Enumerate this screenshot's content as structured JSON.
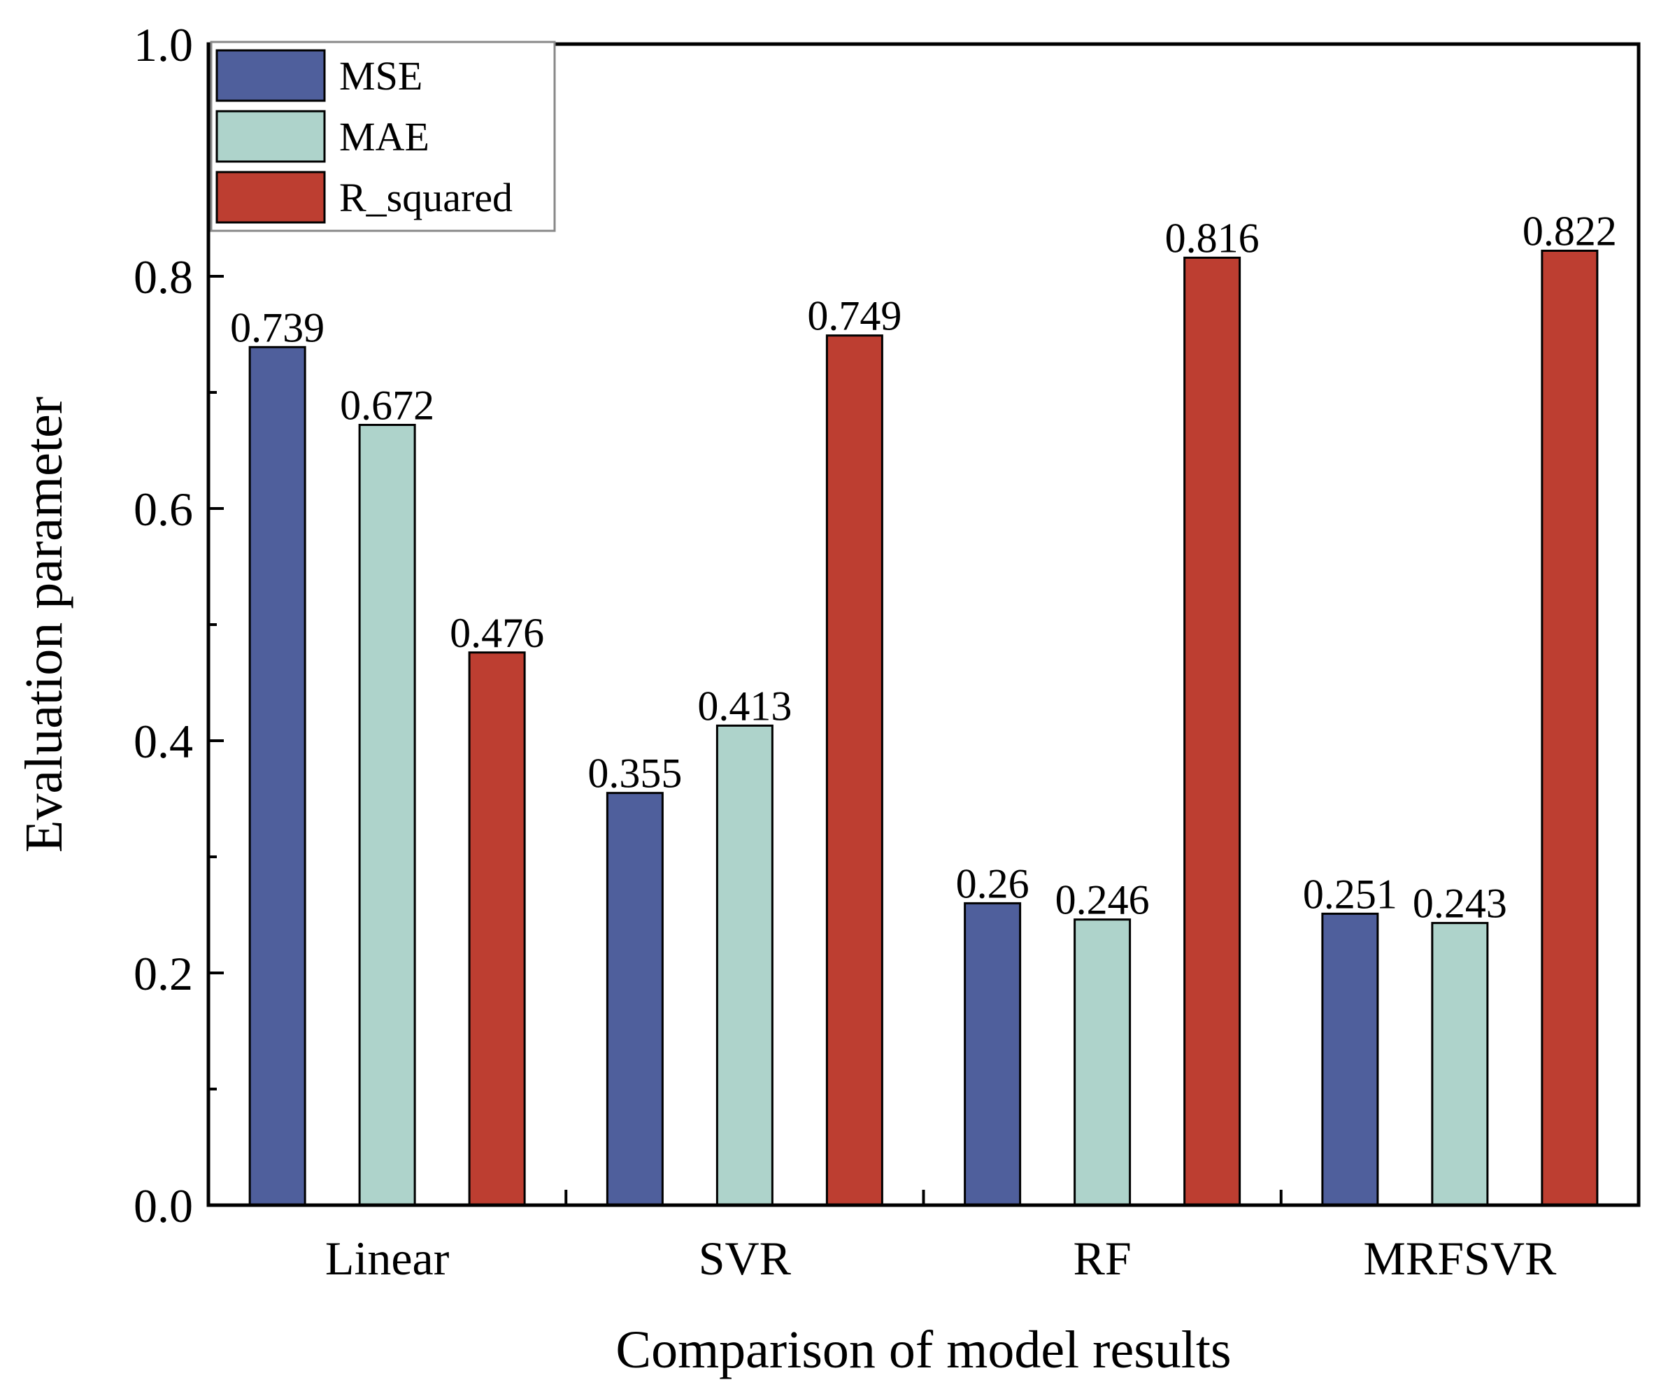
{
  "chart_data": {
    "type": "bar",
    "title": "",
    "xlabel": "Comparison of model results",
    "ylabel": "Evaluation parameter",
    "categories": [
      "Linear",
      "SVR",
      "RF",
      "MRFSVR"
    ],
    "series": [
      {
        "name": "MSE",
        "color": "#4f5f9c",
        "values": [
          0.739,
          0.355,
          0.26,
          0.251
        ],
        "labels": [
          "0.739",
          "0.355",
          "0.26",
          "0.251"
        ]
      },
      {
        "name": "MAE",
        "color": "#aed3cb",
        "values": [
          0.672,
          0.413,
          0.246,
          0.243
        ],
        "labels": [
          "0.672",
          "0.413",
          "0.246",
          "0.243"
        ]
      },
      {
        "name": "R_squared",
        "color": "#bd3e31",
        "values": [
          0.476,
          0.749,
          0.816,
          0.822
        ],
        "labels": [
          "0.476",
          "0.749",
          "0.816",
          "0.822"
        ]
      }
    ],
    "ylim": [
      0,
      1.0
    ],
    "yticks": [
      0.0,
      0.2,
      0.4,
      0.6,
      0.8,
      1.0
    ],
    "ytick_labels": [
      "0.0",
      "0.2",
      "0.4",
      "0.6",
      "0.8",
      "1.0"
    ],
    "grid": false,
    "legend_position": "top-left"
  }
}
